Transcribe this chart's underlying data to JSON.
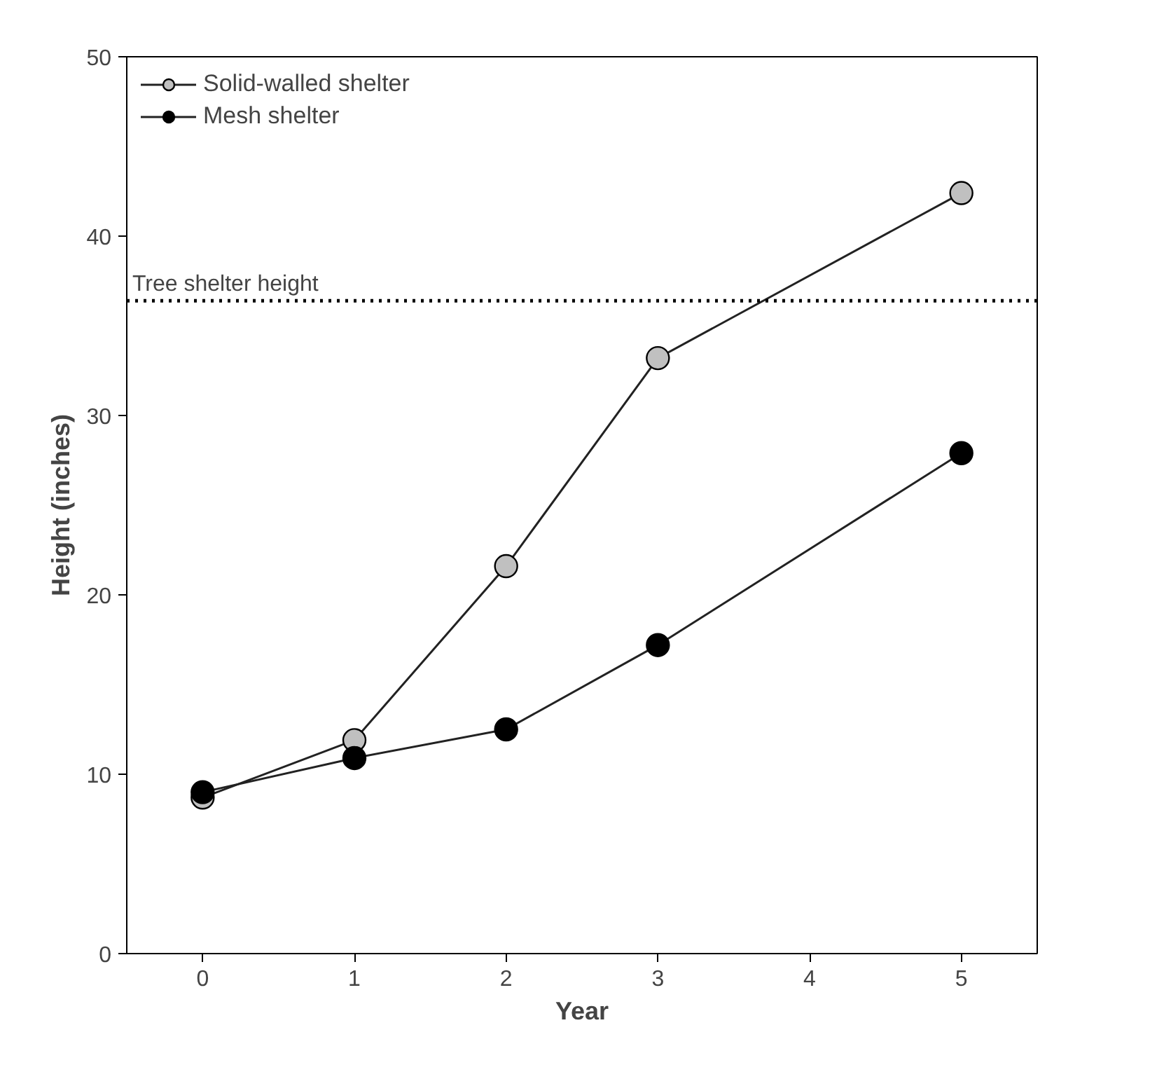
{
  "chart_data": {
    "type": "line",
    "xlabel": "Year",
    "ylabel": "Height (inches)",
    "x": [
      0,
      1,
      2,
      3,
      5
    ],
    "series": [
      {
        "name": "Solid-walled shelter",
        "color": "#c0c0c0",
        "values": [
          8.7,
          11.9,
          21.6,
          33.2,
          42.4
        ]
      },
      {
        "name": "Mesh shelter",
        "color": "#000000",
        "values": [
          9.0,
          10.9,
          12.5,
          17.2,
          27.9
        ]
      }
    ],
    "xlim": [
      -0.5,
      5.5
    ],
    "ylim": [
      0,
      50
    ],
    "xticks": [
      0,
      1,
      2,
      3,
      4,
      5
    ],
    "yticks": [
      0,
      10,
      20,
      30,
      40,
      50
    ],
    "ref_lines": [
      {
        "axis": "y",
        "value": 36.4,
        "label": "Tree shelter height",
        "line_style": "dotted"
      }
    ],
    "grid": false,
    "legend": "top left",
    "marker": "circle",
    "line_style": "solid"
  }
}
